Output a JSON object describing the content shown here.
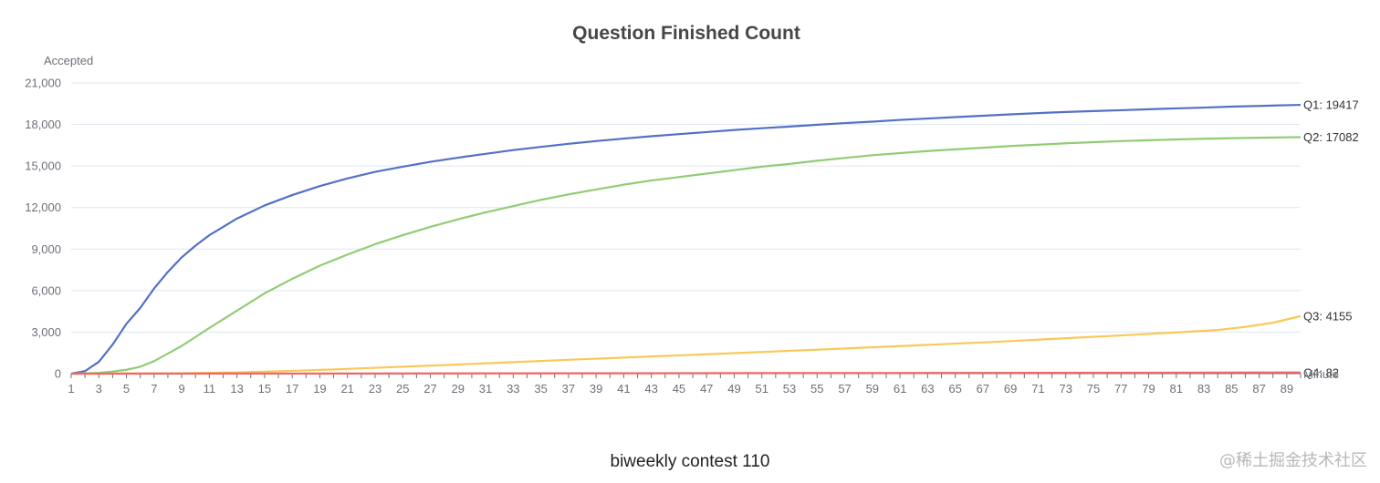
{
  "chart_data": {
    "type": "line",
    "title": "Question Finished Count",
    "ylabel": "Accepted",
    "xlabel": "Minute",
    "ylim": [
      0,
      21000
    ],
    "xlim": [
      1,
      90
    ],
    "yticks": [
      0,
      3000,
      6000,
      9000,
      12000,
      15000,
      18000,
      21000
    ],
    "ytick_labels": [
      "0",
      "3,000",
      "6,000",
      "9,000",
      "12,000",
      "15,000",
      "18,000",
      "21,000"
    ],
    "xtick_labels": [
      1,
      3,
      5,
      7,
      9,
      11,
      13,
      15,
      17,
      19,
      21,
      23,
      25,
      27,
      29,
      31,
      33,
      35,
      37,
      39,
      41,
      43,
      45,
      47,
      49,
      51,
      53,
      55,
      57,
      59,
      61,
      63,
      65,
      67,
      69,
      71,
      73,
      75,
      77,
      79,
      81,
      83,
      85,
      87,
      89
    ],
    "grid": true,
    "legend": "end-of-line labels",
    "series": [
      {
        "name": "Q1",
        "color": "#5470c6",
        "end_label": "Q1: 19417",
        "points": [
          [
            1,
            0
          ],
          [
            2,
            180
          ],
          [
            3,
            850
          ],
          [
            4,
            2100
          ],
          [
            5,
            3600
          ],
          [
            6,
            4750
          ],
          [
            7,
            6150
          ],
          [
            8,
            7350
          ],
          [
            9,
            8400
          ],
          [
            10,
            9250
          ],
          [
            11,
            10000
          ],
          [
            13,
            11200
          ],
          [
            15,
            12150
          ],
          [
            17,
            12900
          ],
          [
            19,
            13550
          ],
          [
            21,
            14100
          ],
          [
            23,
            14580
          ],
          [
            25,
            14950
          ],
          [
            27,
            15300
          ],
          [
            29,
            15600
          ],
          [
            31,
            15880
          ],
          [
            33,
            16150
          ],
          [
            35,
            16380
          ],
          [
            37,
            16600
          ],
          [
            39,
            16800
          ],
          [
            41,
            16980
          ],
          [
            43,
            17150
          ],
          [
            45,
            17300
          ],
          [
            47,
            17450
          ],
          [
            49,
            17600
          ],
          [
            51,
            17730
          ],
          [
            53,
            17850
          ],
          [
            55,
            17980
          ],
          [
            57,
            18100
          ],
          [
            59,
            18200
          ],
          [
            61,
            18330
          ],
          [
            63,
            18430
          ],
          [
            65,
            18530
          ],
          [
            67,
            18630
          ],
          [
            69,
            18730
          ],
          [
            71,
            18820
          ],
          [
            73,
            18900
          ],
          [
            75,
            18970
          ],
          [
            77,
            19030
          ],
          [
            79,
            19100
          ],
          [
            81,
            19160
          ],
          [
            83,
            19220
          ],
          [
            85,
            19290
          ],
          [
            87,
            19340
          ],
          [
            89,
            19390
          ],
          [
            90,
            19417
          ]
        ]
      },
      {
        "name": "Q2",
        "color": "#91cc75",
        "end_label": "Q2: 17082",
        "points": [
          [
            1,
            0
          ],
          [
            2,
            20
          ],
          [
            3,
            60
          ],
          [
            4,
            150
          ],
          [
            5,
            280
          ],
          [
            6,
            500
          ],
          [
            7,
            900
          ],
          [
            8,
            1450
          ],
          [
            9,
            2000
          ],
          [
            10,
            2650
          ],
          [
            11,
            3300
          ],
          [
            13,
            4550
          ],
          [
            15,
            5800
          ],
          [
            17,
            6850
          ],
          [
            19,
            7800
          ],
          [
            21,
            8600
          ],
          [
            23,
            9350
          ],
          [
            25,
            10000
          ],
          [
            27,
            10600
          ],
          [
            29,
            11150
          ],
          [
            31,
            11650
          ],
          [
            33,
            12100
          ],
          [
            35,
            12550
          ],
          [
            37,
            12950
          ],
          [
            39,
            13300
          ],
          [
            41,
            13650
          ],
          [
            43,
            13950
          ],
          [
            45,
            14200
          ],
          [
            47,
            14450
          ],
          [
            49,
            14700
          ],
          [
            51,
            14950
          ],
          [
            53,
            15150
          ],
          [
            55,
            15380
          ],
          [
            57,
            15580
          ],
          [
            59,
            15780
          ],
          [
            61,
            15930
          ],
          [
            63,
            16080
          ],
          [
            65,
            16200
          ],
          [
            67,
            16320
          ],
          [
            69,
            16440
          ],
          [
            71,
            16540
          ],
          [
            73,
            16640
          ],
          [
            75,
            16720
          ],
          [
            77,
            16800
          ],
          [
            79,
            16860
          ],
          [
            81,
            16920
          ],
          [
            83,
            16970
          ],
          [
            85,
            17010
          ],
          [
            87,
            17040
          ],
          [
            89,
            17070
          ],
          [
            90,
            17082
          ]
        ]
      },
      {
        "name": "Q3",
        "color": "#fac858",
        "end_label": "Q3: 4155",
        "points": [
          [
            1,
            0
          ],
          [
            5,
            10
          ],
          [
            9,
            30
          ],
          [
            13,
            90
          ],
          [
            17,
            200
          ],
          [
            21,
            340
          ],
          [
            25,
            500
          ],
          [
            29,
            660
          ],
          [
            33,
            830
          ],
          [
            37,
            1000
          ],
          [
            41,
            1160
          ],
          [
            45,
            1320
          ],
          [
            49,
            1480
          ],
          [
            53,
            1650
          ],
          [
            57,
            1820
          ],
          [
            61,
            1990
          ],
          [
            65,
            2170
          ],
          [
            69,
            2350
          ],
          [
            73,
            2560
          ],
          [
            77,
            2760
          ],
          [
            81,
            2980
          ],
          [
            84,
            3150
          ],
          [
            86,
            3380
          ],
          [
            88,
            3680
          ],
          [
            90,
            4155
          ]
        ]
      },
      {
        "name": "Q4",
        "color": "#ee6666",
        "end_label": "Q4: 82",
        "points": [
          [
            1,
            0
          ],
          [
            20,
            10
          ],
          [
            40,
            25
          ],
          [
            60,
            45
          ],
          [
            80,
            70
          ],
          [
            90,
            82
          ]
        ]
      }
    ]
  },
  "footer": {
    "caption": "biweekly contest 110",
    "watermark": "@稀土掘金技术社区"
  }
}
